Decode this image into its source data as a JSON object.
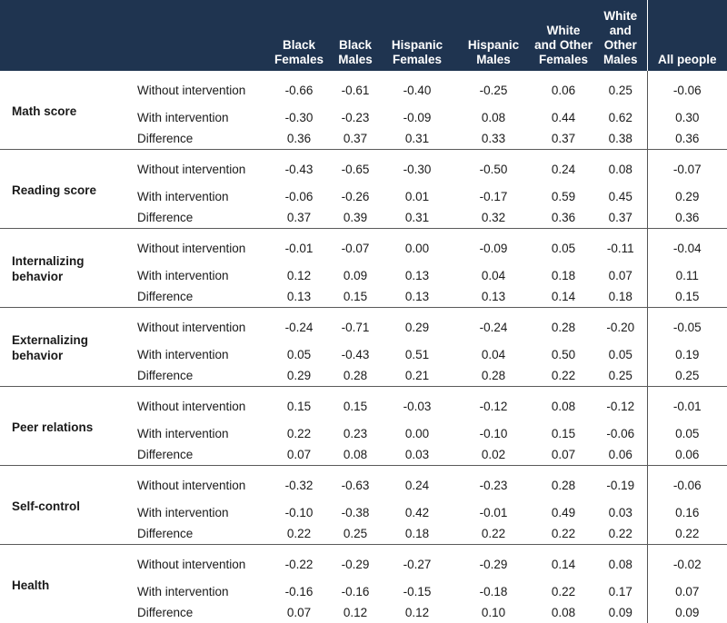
{
  "columns": [
    "Black Females",
    "Black Males",
    "Hispanic Females",
    "Hispanic Males",
    "White and Other Females",
    "White and Other Males",
    "All people"
  ],
  "row_labels": [
    "Without intervention",
    "With intervention",
    "Difference"
  ],
  "groups": [
    {
      "category": "Math score",
      "rows": [
        [
          "-0.66",
          "-0.61",
          "-0.40",
          "-0.25",
          "0.06",
          "0.25",
          "-0.06"
        ],
        [
          "-0.30",
          "-0.23",
          "-0.09",
          "0.08",
          "0.44",
          "0.62",
          "0.30"
        ],
        [
          "0.36",
          "0.37",
          "0.31",
          "0.33",
          "0.37",
          "0.38",
          "0.36"
        ]
      ]
    },
    {
      "category": "Reading score",
      "rows": [
        [
          "-0.43",
          "-0.65",
          "-0.30",
          "-0.50",
          "0.24",
          "0.08",
          "-0.07"
        ],
        [
          "-0.06",
          "-0.26",
          "0.01",
          "-0.17",
          "0.59",
          "0.45",
          "0.29"
        ],
        [
          "0.37",
          "0.39",
          "0.31",
          "0.32",
          "0.36",
          "0.37",
          "0.36"
        ]
      ]
    },
    {
      "category": "Internalizing behavior",
      "rows": [
        [
          "-0.01",
          "-0.07",
          "0.00",
          "-0.09",
          "0.05",
          "-0.11",
          "-0.04"
        ],
        [
          "0.12",
          "0.09",
          "0.13",
          "0.04",
          "0.18",
          "0.07",
          "0.11"
        ],
        [
          "0.13",
          "0.15",
          "0.13",
          "0.13",
          "0.14",
          "0.18",
          "0.15"
        ]
      ]
    },
    {
      "category": "Externalizing behavior",
      "rows": [
        [
          "-0.24",
          "-0.71",
          "0.29",
          "-0.24",
          "0.28",
          "-0.20",
          "-0.05"
        ],
        [
          "0.05",
          "-0.43",
          "0.51",
          "0.04",
          "0.50",
          "0.05",
          "0.19"
        ],
        [
          "0.29",
          "0.28",
          "0.21",
          "0.28",
          "0.22",
          "0.25",
          "0.25"
        ]
      ]
    },
    {
      "category": "Peer relations",
      "rows": [
        [
          "0.15",
          "0.15",
          "-0.03",
          "-0.12",
          "0.08",
          "-0.12",
          "-0.01"
        ],
        [
          "0.22",
          "0.23",
          "0.00",
          "-0.10",
          "0.15",
          "-0.06",
          "0.05"
        ],
        [
          "0.07",
          "0.08",
          "0.03",
          "0.02",
          "0.07",
          "0.06",
          "0.06"
        ]
      ]
    },
    {
      "category": "Self-control",
      "rows": [
        [
          "-0.32",
          "-0.63",
          "0.24",
          "-0.23",
          "0.28",
          "-0.19",
          "-0.06"
        ],
        [
          "-0.10",
          "-0.38",
          "0.42",
          "-0.01",
          "0.49",
          "0.03",
          "0.16"
        ],
        [
          "0.22",
          "0.25",
          "0.18",
          "0.22",
          "0.22",
          "0.22",
          "0.22"
        ]
      ]
    },
    {
      "category": "Health",
      "rows": [
        [
          "-0.22",
          "-0.29",
          "-0.27",
          "-0.29",
          "0.14",
          "0.08",
          "-0.02"
        ],
        [
          "-0.16",
          "-0.16",
          "-0.15",
          "-0.18",
          "0.22",
          "0.17",
          "0.07"
        ],
        [
          "0.07",
          "0.12",
          "0.12",
          "0.10",
          "0.08",
          "0.09",
          "0.09"
        ]
      ]
    }
  ],
  "colors": {
    "header_bg": "#1f3450",
    "header_text": "#ffffff",
    "rule": "#5a5a5a"
  }
}
